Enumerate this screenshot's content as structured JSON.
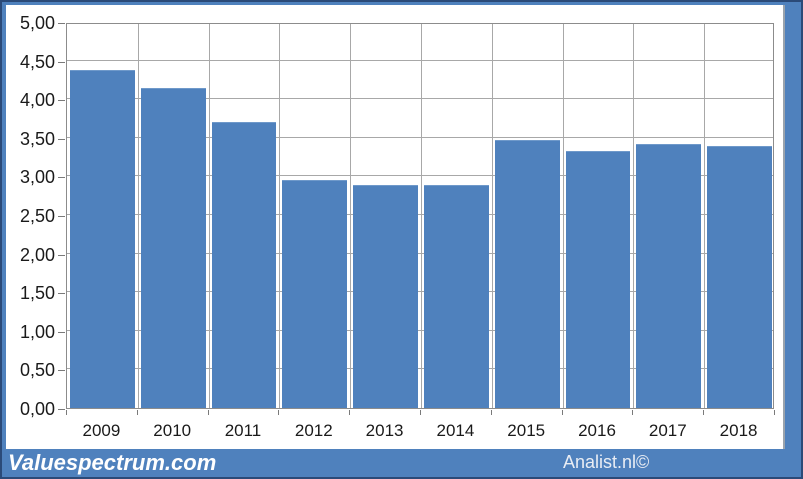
{
  "chart_data": {
    "type": "bar",
    "title": "",
    "xlabel": "",
    "ylabel": "",
    "categories": [
      "2009",
      "2010",
      "2011",
      "2012",
      "2013",
      "2014",
      "2015",
      "2016",
      "2017",
      "2018"
    ],
    "values": [
      4.38,
      4.15,
      3.7,
      2.95,
      2.89,
      2.89,
      3.47,
      3.33,
      3.42,
      3.39
    ],
    "ylim": [
      0,
      5
    ],
    "y_tick_step": 0.5,
    "y_tick_labels": [
      "0,00",
      "0,50",
      "1,00",
      "1,50",
      "2,00",
      "2,50",
      "3,00",
      "3,50",
      "4,00",
      "4,50",
      "5,00"
    ],
    "grid": "both",
    "legend": "none",
    "bar_color": "#4f81bd"
  },
  "footer": {
    "left_watermark": "Valuespectrum.com",
    "right_watermark": "Analist.nl©"
  },
  "colors": {
    "frame_blue": "#4f81bd",
    "frame_edge": "#2b4a78",
    "bar_fill": "#4f81bd",
    "gridline": "#a8a8a8",
    "plot_border": "#8c8c8c",
    "axis_text": "#1a1a1a",
    "watermark_text": "#ffffff"
  }
}
